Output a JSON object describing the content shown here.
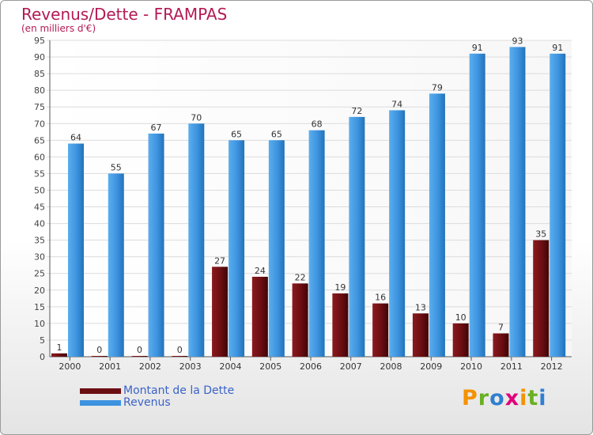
{
  "title": "Revenus/Dette - FRAMPAS",
  "subtitle": "(en milliers d'€)",
  "chart_data": {
    "type": "bar",
    "categories": [
      "2000",
      "2001",
      "2002",
      "2003",
      "2004",
      "2005",
      "2006",
      "2007",
      "2008",
      "2009",
      "2010",
      "2011",
      "2012"
    ],
    "series": [
      {
        "name": "Montant de la Dette",
        "color": "#6b0e12",
        "values": [
          1,
          0,
          0,
          0,
          27,
          24,
          22,
          19,
          16,
          13,
          10,
          7,
          35
        ]
      },
      {
        "name": "Revenus",
        "color": "#3d93df",
        "values": [
          64,
          55,
          67,
          70,
          65,
          65,
          68,
          72,
          74,
          79,
          91,
          93,
          91
        ]
      }
    ],
    "ylim": [
      0,
      95
    ],
    "yticks": [
      0,
      5,
      10,
      15,
      20,
      25,
      30,
      35,
      40,
      45,
      50,
      55,
      60,
      65,
      70,
      75,
      80,
      85,
      90,
      95
    ],
    "grid": true,
    "legend": "bottom-left"
  },
  "legend": {
    "debt_label": "Montant de la Dette",
    "revenue_label": "Revenus"
  },
  "logo": {
    "letters": [
      "P",
      "r",
      "o",
      "x",
      "i",
      "t",
      "i"
    ],
    "colors": [
      "#f39200",
      "#6ab023",
      "#2f7fd0",
      "#e2007a",
      "#f39200",
      "#6ab023",
      "#2f7fd0"
    ]
  }
}
